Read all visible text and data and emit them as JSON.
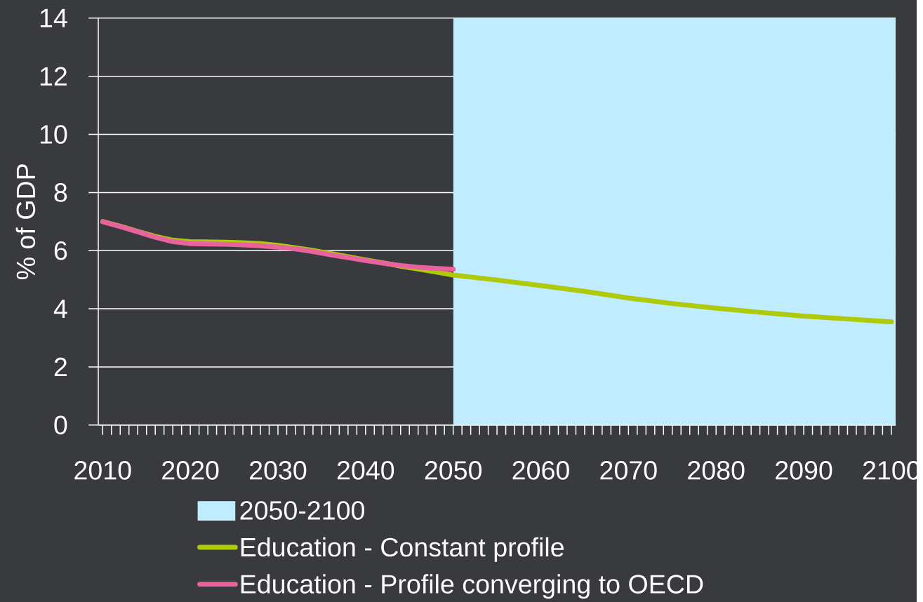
{
  "chart_data": {
    "type": "line",
    "ylabel": "% of GDP",
    "xlim": [
      2009.5,
      2100.5
    ],
    "xticks": [
      2010,
      2020,
      2030,
      2040,
      2050,
      2060,
      2070,
      2080,
      2090,
      2100
    ],
    "ylim": [
      0,
      14
    ],
    "yticks": [
      0,
      2,
      4,
      6,
      8,
      10,
      12,
      14
    ],
    "grid": "y",
    "legend": "bottom",
    "bands": [
      {
        "axis": "x",
        "from": 2050,
        "to": 2100.5,
        "label": "2050-2100",
        "color": "#bfedff"
      }
    ],
    "series": [
      {
        "name": "Education - Constant profile",
        "color": "#afca0b",
        "x": [
          2010,
          2012,
          2014,
          2016,
          2018,
          2020,
          2022,
          2024,
          2026,
          2028,
          2030,
          2032,
          2034,
          2036,
          2038,
          2040,
          2042,
          2044,
          2046,
          2048,
          2050,
          2055,
          2060,
          2065,
          2070,
          2075,
          2080,
          2085,
          2090,
          2095,
          2100
        ],
        "values": [
          7.0,
          6.84,
          6.66,
          6.49,
          6.36,
          6.31,
          6.3,
          6.29,
          6.27,
          6.24,
          6.18,
          6.1,
          6.01,
          5.9,
          5.79,
          5.68,
          5.58,
          5.47,
          5.37,
          5.27,
          5.16,
          4.99,
          4.8,
          4.6,
          4.37,
          4.18,
          4.02,
          3.88,
          3.75,
          3.65,
          3.55
        ]
      },
      {
        "name": "Education - Profile converging to OECD",
        "color": "#e8629e",
        "x": [
          2010,
          2012,
          2014,
          2016,
          2018,
          2020,
          2022,
          2024,
          2026,
          2028,
          2030,
          2032,
          2034,
          2036,
          2038,
          2040,
          2042,
          2044,
          2046,
          2048,
          2050
        ],
        "values": [
          7.0,
          6.83,
          6.65,
          6.46,
          6.31,
          6.24,
          6.23,
          6.22,
          6.2,
          6.17,
          6.12,
          6.06,
          5.97,
          5.86,
          5.76,
          5.66,
          5.57,
          5.49,
          5.43,
          5.39,
          5.36
        ]
      }
    ]
  }
}
